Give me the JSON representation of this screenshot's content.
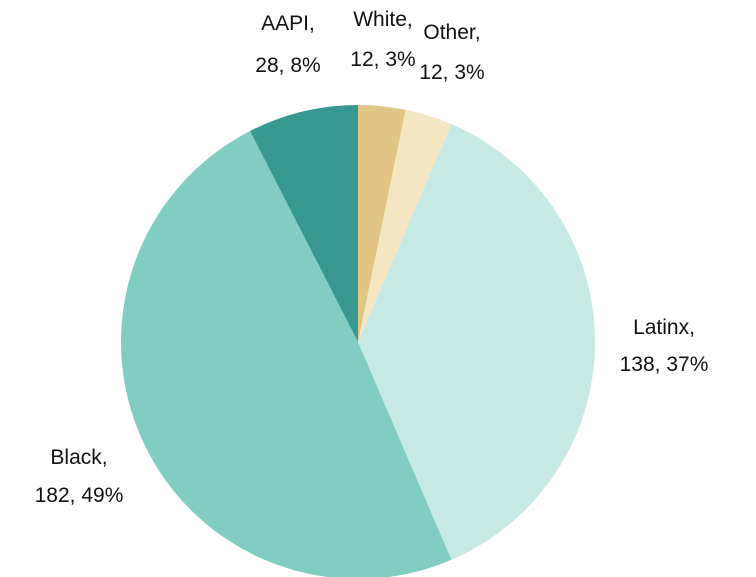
{
  "chart_data": {
    "type": "pie",
    "title": "",
    "start_angle_deg": 0,
    "direction": "clockwise",
    "slices": [
      {
        "name": "White",
        "value": 12,
        "percent_label": "3%",
        "label_line1": "White,",
        "label_line2": "12, 3%",
        "color": "#e0c585"
      },
      {
        "name": "Other",
        "value": 12,
        "percent_label": "3%",
        "label_line1": "Other,",
        "label_line2": "12, 3%",
        "color": "#f5e6c3"
      },
      {
        "name": "Latinx",
        "value": 138,
        "percent_label": "37%",
        "label_line1": "Latinx,",
        "label_line2": "138, 37%",
        "color": "#c6e9e3"
      },
      {
        "name": "Black",
        "value": 182,
        "percent_label": "49%",
        "label_line1": "Black,",
        "label_line2": "182, 49%",
        "color": "#82cdc2"
      },
      {
        "name": "AAPI",
        "value": 28,
        "percent_label": "8%",
        "label_line1": "AAPI,",
        "label_line2": "28, 8%",
        "color": "#369890"
      }
    ]
  }
}
